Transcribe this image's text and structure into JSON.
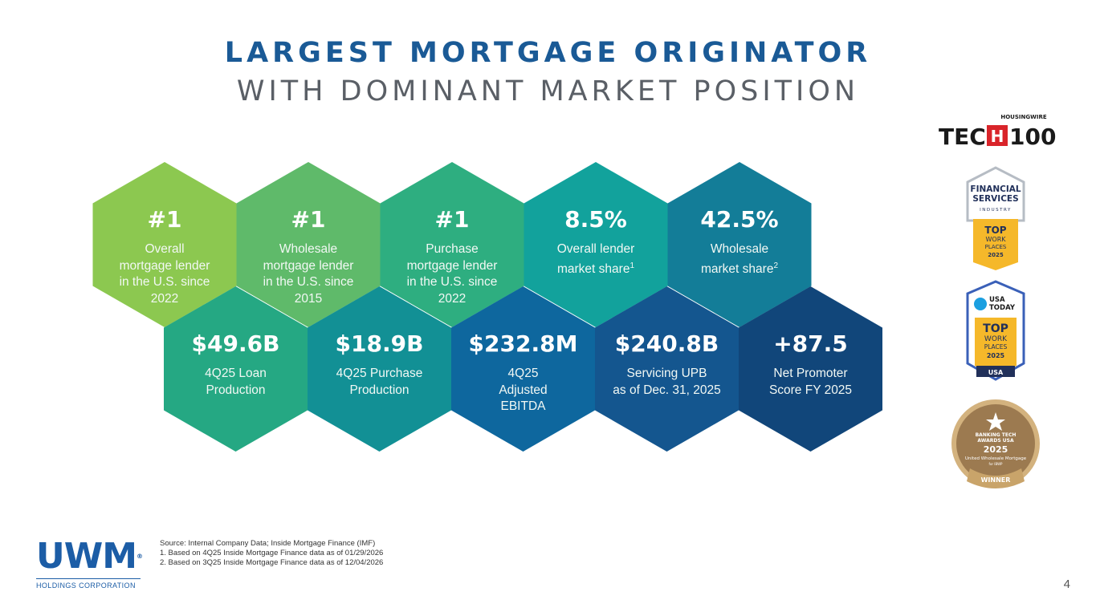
{
  "title": {
    "line1": "LARGEST MORTGAGE ORIGINATOR",
    "line2": "WITH DOMINANT MARKET POSITION"
  },
  "stats_top": [
    {
      "value": "#1",
      "label": "Overall\nmortgage lender\nin the U.S. since\n2022",
      "color": "#8cc850"
    },
    {
      "value": "#1",
      "label": "Wholesale\nmortgage lender\nin the U.S. since\n2015",
      "color": "#5fba6a"
    },
    {
      "value": "#1",
      "label": "Purchase\nmortgage lender\nin the U.S. since\n2022",
      "color": "#2eae80"
    },
    {
      "value": "8.5%",
      "label": "Overall lender\nmarket share",
      "sup": "1",
      "color": "#12a29c"
    },
    {
      "value": "42.5%",
      "label": "Wholesale\nmarket share",
      "sup": "2",
      "color": "#137d98"
    }
  ],
  "stats_bottom": [
    {
      "value": "$49.6B",
      "label": "4Q25 Loan\nProduction",
      "color": "#25a883"
    },
    {
      "value": "$18.9B",
      "label": "4Q25 Purchase\nProduction",
      "color": "#129095"
    },
    {
      "value": "$232.8M",
      "label": "4Q25\nAdjusted\nEBITDA",
      "color": "#0e679e"
    },
    {
      "value": "$240.8B",
      "label": "Servicing UPB\nas of Dec. 31, 2025",
      "color": "#14568f"
    },
    {
      "value": "+87.5",
      "label": "Net Promoter\nScore FY 2025",
      "color": "#11467a"
    }
  ],
  "awards": {
    "housingwire": {
      "top": "HOUSINGWIRE",
      "left": "TEC",
      "mark": "H",
      "right": "100"
    },
    "financial": {
      "title1": "FINANCIAL",
      "title2": "SERVICES",
      "industry": "INDUSTRY",
      "top": "TOP",
      "work": "WORK",
      "places": "PLACES",
      "year": "2025"
    },
    "usatoday": {
      "brand1": "USA",
      "brand2": "TODAY",
      "top": "TOP",
      "work": "WORK",
      "places": "PLACES",
      "year": "2025",
      "country": "USA"
    },
    "banking": {
      "line1": "BANKING TECH",
      "line2": "AWARDS USA",
      "year": "2025",
      "company": "United Wholesale Mortgage",
      "for": "for IBWP",
      "ribbon": "WINNER"
    }
  },
  "logo": {
    "name": "UWM",
    "reg": "®",
    "sub": "HOLDINGS CORPORATION"
  },
  "footnotes": [
    "Source: Internal Company Data; Inside Mortgage Finance (IMF)",
    "1. Based on 4Q25 Inside Mortgage Finance data as of 01/29/2026",
    "2. Based on 3Q25 Inside Mortgage Finance data as of 12/04/2026"
  ],
  "page_number": "4"
}
